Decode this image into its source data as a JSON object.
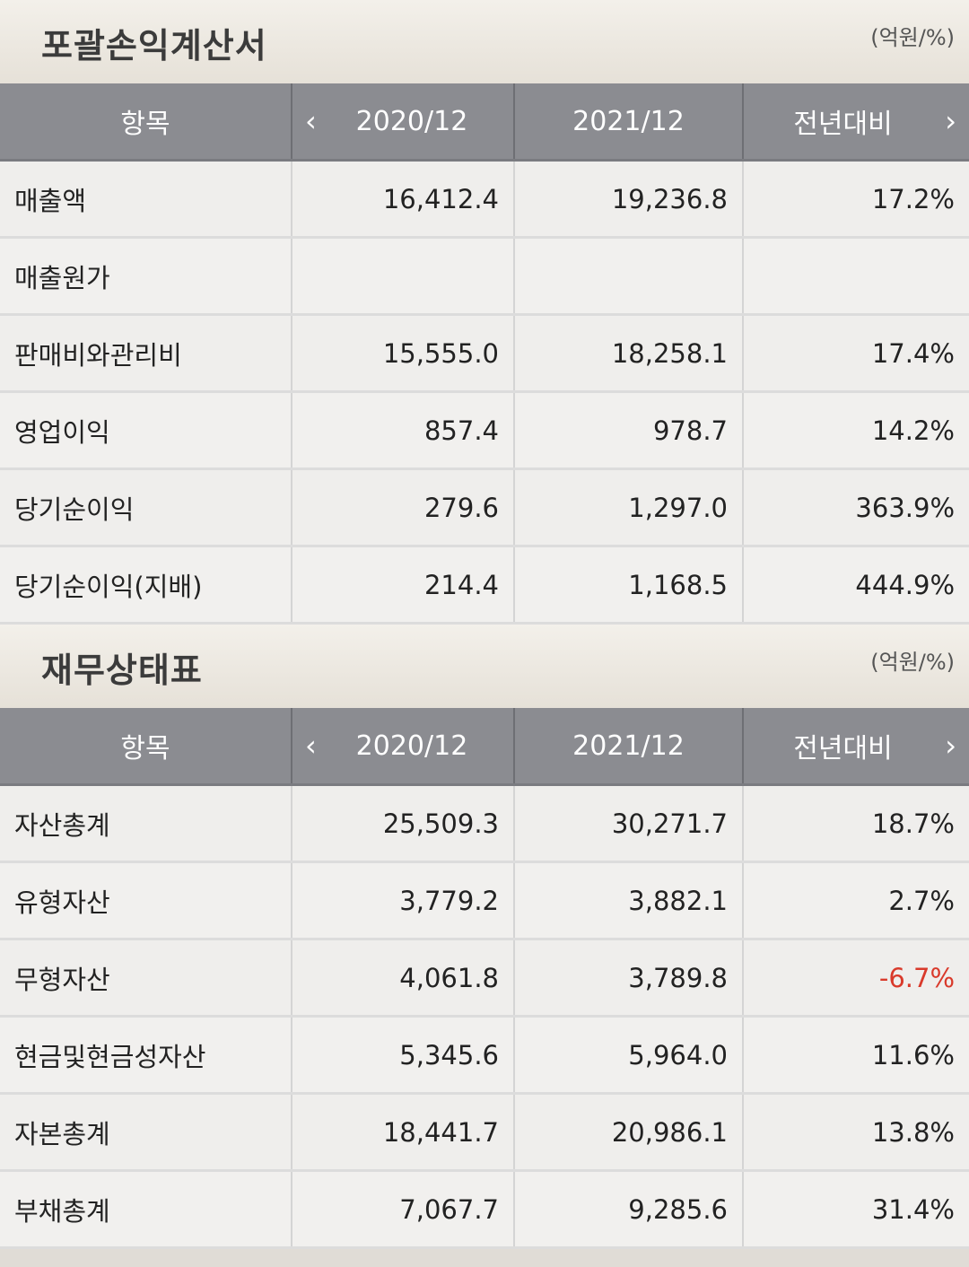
{
  "income": {
    "title": "포괄손익계산서",
    "unit": "(억원/%)",
    "headers": {
      "item": "항목",
      "y1": "2020/12",
      "y2": "2021/12",
      "yoy": "전년대비"
    },
    "rows": [
      {
        "label": "매출액",
        "v1": "16,412.4",
        "v2": "19,236.8",
        "yoy": "17.2%",
        "neg": false
      },
      {
        "label": "매출원가",
        "v1": "",
        "v2": "",
        "yoy": "",
        "neg": false
      },
      {
        "label": "판매비와관리비",
        "v1": "15,555.0",
        "v2": "18,258.1",
        "yoy": "17.4%",
        "neg": false
      },
      {
        "label": "영업이익",
        "v1": "857.4",
        "v2": "978.7",
        "yoy": "14.2%",
        "neg": false
      },
      {
        "label": "당기순이익",
        "v1": "279.6",
        "v2": "1,297.0",
        "yoy": "363.9%",
        "neg": false
      },
      {
        "label": "당기순이익(지배)",
        "v1": "214.4",
        "v2": "1,168.5",
        "yoy": "444.9%",
        "neg": false
      }
    ]
  },
  "balance": {
    "title": "재무상태표",
    "unit": "(억원/%)",
    "headers": {
      "item": "항목",
      "y1": "2020/12",
      "y2": "2021/12",
      "yoy": "전년대비"
    },
    "rows": [
      {
        "label": "자산총계",
        "v1": "25,509.3",
        "v2": "30,271.7",
        "yoy": "18.7%",
        "neg": false
      },
      {
        "label": "유형자산",
        "v1": "3,779.2",
        "v2": "3,882.1",
        "yoy": "2.7%",
        "neg": false
      },
      {
        "label": "무형자산",
        "v1": "4,061.8",
        "v2": "3,789.8",
        "yoy": "-6.7%",
        "neg": true
      },
      {
        "label": "현금및현금성자산",
        "v1": "5,345.6",
        "v2": "5,964.0",
        "yoy": "11.6%",
        "neg": false
      },
      {
        "label": "자본총계",
        "v1": "18,441.7",
        "v2": "20,986.1",
        "yoy": "13.8%",
        "neg": false
      },
      {
        "label": "부채총계",
        "v1": "7,067.7",
        "v2": "9,285.6",
        "yoy": "31.4%",
        "neg": false
      }
    ]
  },
  "icons": {
    "prev": "chevron-left-icon",
    "next": "chevron-right-icon"
  },
  "colors": {
    "negative": "#d93a2b",
    "header_bg": "#8b8c91"
  }
}
